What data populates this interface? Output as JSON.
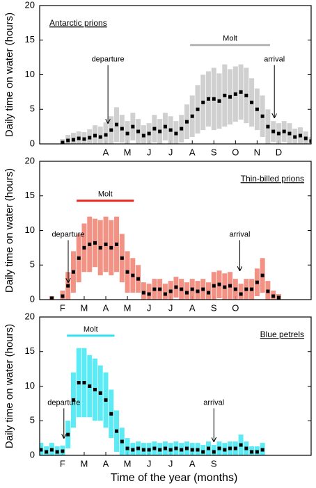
{
  "x_label": "Time of the year (months)",
  "chart_data": [
    {
      "type": "errorscatter",
      "title": "Antarctic prions",
      "title_position": "left",
      "y_label": "Daily time on water (hours)",
      "band_color": "#c8c8c8",
      "point_color": "#000000",
      "xlim": [
        0.94,
        13.5
      ],
      "ylim": [
        0,
        20
      ],
      "yticks": [
        0,
        5,
        10,
        15,
        20
      ],
      "xticks": [
        {
          "value": 4,
          "label": "A"
        },
        {
          "value": 5,
          "label": "M"
        },
        {
          "value": 6,
          "label": "J"
        },
        {
          "value": 7,
          "label": "J"
        },
        {
          "value": 8,
          "label": "A"
        },
        {
          "value": 9,
          "label": "S"
        },
        {
          "value": 10,
          "label": "O"
        },
        {
          "value": 11,
          "label": "N"
        },
        {
          "value": 12,
          "label": "D"
        }
      ],
      "x": [
        2,
        2.25,
        2.5,
        2.75,
        3,
        3.25,
        3.5,
        3.75,
        4,
        4.25,
        4.5,
        4.75,
        5,
        5.25,
        5.5,
        5.75,
        6,
        6.25,
        6.5,
        6.75,
        7,
        7.25,
        7.5,
        7.75,
        8,
        8.25,
        8.5,
        8.75,
        9,
        9.25,
        9.5,
        9.75,
        10,
        10.25,
        10.5,
        10.75,
        11,
        11.25,
        11.5,
        11.75,
        12,
        12.25,
        12.5,
        12.75,
        13,
        13.25,
        13.5
      ],
      "values": [
        0.2,
        0.5,
        0.6,
        0.8,
        0.7,
        0.9,
        1.2,
        1.0,
        1.3,
        2.0,
        2.8,
        2.2,
        1.5,
        2.5,
        1.8,
        1.2,
        1.5,
        2.2,
        1.8,
        2.5,
        2.0,
        1.5,
        2.2,
        3.2,
        4.0,
        5.0,
        6.0,
        6.5,
        6.5,
        6.2,
        7.0,
        6.8,
        7.2,
        7.5,
        7.0,
        6.0,
        5.0,
        4.0,
        2.5,
        1.8,
        1.5,
        1.8,
        1.5,
        1.0,
        1.2,
        0.8,
        0.4
      ],
      "error": [
        0.5,
        0.8,
        1,
        1,
        1,
        1.2,
        1.5,
        1.5,
        1.8,
        2,
        2.5,
        2,
        1.8,
        2,
        1.8,
        1.5,
        1.5,
        2,
        1.8,
        2,
        2,
        1.8,
        2,
        2.5,
        3,
        3.5,
        4,
        4,
        4.5,
        4,
        4.5,
        4,
        4,
        4,
        4,
        3.5,
        3,
        3,
        2.5,
        1.5,
        1.5,
        1.5,
        1.5,
        1.2,
        1.2,
        1,
        0.6
      ],
      "molt": {
        "label": "Molt",
        "start": 7.9,
        "end": 11.6,
        "level": 14.3,
        "color": "#b4b4b4"
      },
      "annotations": [
        {
          "text": "departure",
          "x": 4.1,
          "y": 12.2,
          "arrow_to": 3
        },
        {
          "text": "arrival",
          "x": 11.8,
          "y": 12.2,
          "arrow_to": 3.8
        }
      ]
    },
    {
      "type": "errorscatter",
      "title": "Thin-billed prions",
      "title_position": "right",
      "y_label": "Daily time on water (hours)",
      "band_color": "#f08070",
      "point_color": "#000000",
      "xlim": [
        0.94,
        13.5
      ],
      "ylim": [
        0,
        20
      ],
      "yticks": [
        0,
        5,
        10,
        15,
        20
      ],
      "xticks": [
        {
          "value": 2,
          "label": "F"
        },
        {
          "value": 3,
          "label": "M"
        },
        {
          "value": 4,
          "label": "A"
        },
        {
          "value": 5,
          "label": "M"
        },
        {
          "value": 6,
          "label": "J"
        },
        {
          "value": 7,
          "label": "J"
        },
        {
          "value": 8,
          "label": "A"
        },
        {
          "value": 9,
          "label": "S"
        },
        {
          "value": 10,
          "label": "O"
        }
      ],
      "x": [
        1.5,
        2,
        2.25,
        2.5,
        2.75,
        3,
        3.25,
        3.5,
        3.75,
        4,
        4.25,
        4.5,
        4.75,
        5,
        5.25,
        5.5,
        5.75,
        6,
        6.25,
        6.5,
        6.75,
        7,
        7.25,
        7.5,
        7.75,
        8,
        8.25,
        8.5,
        8.75,
        9,
        9.25,
        9.5,
        9.75,
        10,
        10.25,
        10.5,
        10.75,
        11,
        11.25,
        11.5,
        11.75,
        12
      ],
      "values": [
        0.2,
        0.5,
        2,
        4,
        6,
        7.5,
        8,
        8.2,
        7.5,
        8,
        7.5,
        8,
        6,
        4,
        3.5,
        3.0,
        1.0,
        0.8,
        1.5,
        1.5,
        0.8,
        1.2,
        1.8,
        1.5,
        1.0,
        1.5,
        1.2,
        1.5,
        1.0,
        2.0,
        2.2,
        1.8,
        2.0,
        1.5,
        0.8,
        1.5,
        1.5,
        2.5,
        3.5,
        1.2,
        0.5,
        0.3
      ],
      "error": [
        0.3,
        0.8,
        2,
        3,
        3.5,
        3.5,
        4,
        3.5,
        4,
        4,
        4,
        4,
        3.5,
        3,
        2.5,
        2,
        1.5,
        1.5,
        1.5,
        1.5,
        1.5,
        1.5,
        1.5,
        1.5,
        1.5,
        1.5,
        1.5,
        1.5,
        1.5,
        2,
        2,
        2,
        2,
        1.5,
        1.5,
        1.5,
        1.5,
        2,
        2.5,
        1.5,
        0.8,
        0.5
      ],
      "molt": {
        "label": "Molt",
        "start": 2.65,
        "end": 5.3,
        "level": 14.3,
        "color": "#e8281e"
      },
      "annotations": [
        {
          "text": "departure",
          "x": 2.26,
          "y": 9.4,
          "arrow_to": 2.5
        },
        {
          "text": "arrival",
          "x": 10.2,
          "y": 9.4,
          "arrow_to": 4.2
        }
      ]
    },
    {
      "type": "errorscatter",
      "title": "Blue petrels",
      "title_position": "right",
      "y_label": "Daily time on water (hours)",
      "band_color": "#40e8f4",
      "point_color": "#000000",
      "xlim": [
        0.94,
        13.5
      ],
      "ylim": [
        0,
        20
      ],
      "yticks": [
        0,
        5,
        10,
        15,
        20
      ],
      "xticks": [
        {
          "value": 2,
          "label": "F"
        },
        {
          "value": 3,
          "label": "M"
        },
        {
          "value": 4,
          "label": "A"
        },
        {
          "value": 5,
          "label": "M"
        },
        {
          "value": 6,
          "label": "J"
        },
        {
          "value": 7,
          "label": "J"
        },
        {
          "value": 8,
          "label": "A"
        },
        {
          "value": 9,
          "label": "S"
        }
      ],
      "x": [
        1,
        1.25,
        1.5,
        1.75,
        2,
        2.25,
        2.5,
        2.75,
        3,
        3.25,
        3.5,
        3.75,
        4,
        4.25,
        4.5,
        4.75,
        5,
        5.25,
        5.5,
        5.75,
        6,
        6.25,
        6.5,
        6.75,
        7,
        7.25,
        7.5,
        7.75,
        8,
        8.25,
        8.5,
        8.75,
        9,
        9.25,
        9.5,
        9.75,
        10,
        10.25,
        10.5,
        10.75,
        11,
        11.25
      ],
      "values": [
        0.8,
        0.5,
        0.8,
        0.5,
        0.6,
        3,
        8,
        10.5,
        10.5,
        10,
        9.5,
        9,
        8,
        6,
        3.5,
        2,
        1,
        0.8,
        1.0,
        0.8,
        0.8,
        1.0,
        0.8,
        1.0,
        0.8,
        1.0,
        0.8,
        1.0,
        0.8,
        0.8,
        0.5,
        1.0,
        0.5,
        1.0,
        0.8,
        1.0,
        1.0,
        1.5,
        1.0,
        0.5,
        0.5,
        0.8
      ],
      "error": [
        1,
        0.8,
        1,
        0.8,
        0.8,
        2,
        4,
        5,
        5,
        4.5,
        4.5,
        4,
        4,
        3.5,
        3,
        2,
        1.5,
        1,
        1,
        1,
        1,
        1,
        1,
        1,
        1,
        1,
        1,
        1,
        1,
        1,
        1,
        1,
        1,
        1,
        1,
        1,
        1,
        1.5,
        1,
        0.8,
        0.8,
        1
      ],
      "molt": {
        "label": "Molt",
        "start": 2.2,
        "end": 4.4,
        "level": 17.3,
        "color": "#30e0f0"
      },
      "annotations": [
        {
          "text": "departure",
          "x": 2.06,
          "y": 7.6,
          "arrow_to": 2.5
        },
        {
          "text": "arrival",
          "x": 9.0,
          "y": 7.6,
          "arrow_to": 2
        }
      ]
    }
  ]
}
